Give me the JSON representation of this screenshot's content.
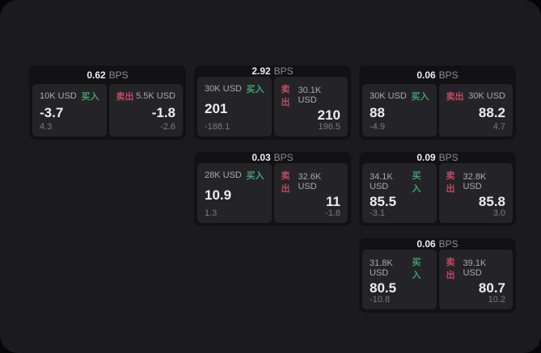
{
  "colors": {
    "page_bg": "#070708",
    "container_bg": "#1b1b1d",
    "card_bg": "#121214",
    "panel_bg": "#242428",
    "buy_green": "#41a06a",
    "sell_red": "#c04a60",
    "text_primary": "#ededef",
    "text_muted": "#8d8d93"
  },
  "labels": {
    "bps_unit": "BPS",
    "buy": "买入",
    "sell": "卖出"
  },
  "cards": [
    {
      "row": 1,
      "col": 1,
      "bps": "0.62",
      "buy": {
        "amount": "10K USD",
        "value": "-3.7",
        "sub": "4.3"
      },
      "sell": {
        "amount": "5.5K USD",
        "value": "-1.8",
        "sub": "-2.6"
      }
    },
    {
      "row": 1,
      "col": 2,
      "bps": "2.92",
      "buy": {
        "amount": "30K USD",
        "value": "201",
        "sub": "-188.1"
      },
      "sell": {
        "amount": "30.1K USD",
        "value": "210",
        "sub": "196.5"
      }
    },
    {
      "row": 1,
      "col": 3,
      "bps": "0.06",
      "buy": {
        "amount": "30K USD",
        "value": "88",
        "sub": "-4.9"
      },
      "sell": {
        "amount": "30K USD",
        "value": "88.2",
        "sub": "4.7"
      }
    },
    {
      "row": 2,
      "col": 2,
      "bps": "0.03",
      "buy": {
        "amount": "28K USD",
        "value": "10.9",
        "sub": "1.3"
      },
      "sell": {
        "amount": "32.6K USD",
        "value": "11",
        "sub": "-1.8"
      }
    },
    {
      "row": 2,
      "col": 3,
      "bps": "0.09",
      "buy": {
        "amount": "34.1K USD",
        "value": "85.5",
        "sub": "-3.1"
      },
      "sell": {
        "amount": "32.8K USD",
        "value": "85.8",
        "sub": "3.0"
      }
    },
    {
      "row": 3,
      "col": 3,
      "bps": "0.06",
      "buy": {
        "amount": "31.8K USD",
        "value": "80.5",
        "sub": "-10.8"
      },
      "sell": {
        "amount": "39.1K USD",
        "value": "80.7",
        "sub": "10.2"
      }
    }
  ]
}
